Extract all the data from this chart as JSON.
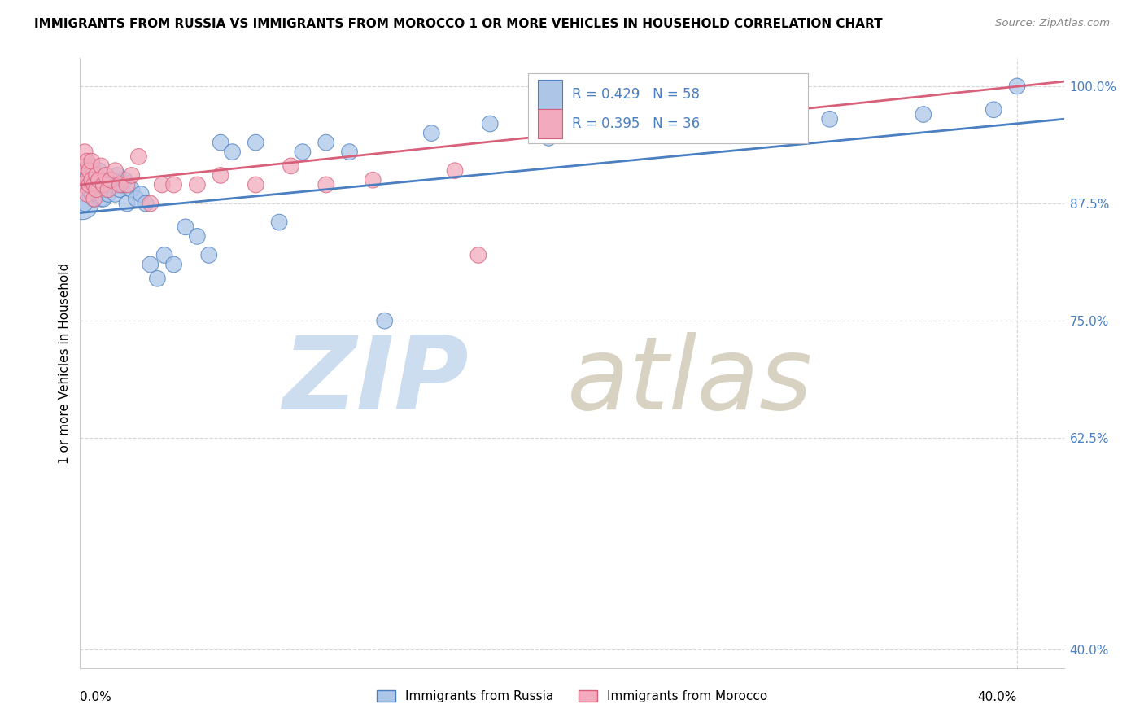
{
  "title": "IMMIGRANTS FROM RUSSIA VS IMMIGRANTS FROM MOROCCO 1 OR MORE VEHICLES IN HOUSEHOLD CORRELATION CHART",
  "source": "Source: ZipAtlas.com",
  "ylabel": "1 or more Vehicles in Household",
  "legend1_label": "Immigrants from Russia",
  "legend2_label": "Immigrants from Morocco",
  "r_russia": 0.429,
  "n_russia": 58,
  "r_morocco": 0.395,
  "n_morocco": 36,
  "color_russia": "#adc6e8",
  "color_morocco": "#f2abbe",
  "line_color_russia": "#4a7fc1",
  "line_color_morocco": "#d9607a",
  "watermark_zip_color": "#c5d8ee",
  "watermark_atlas_color": "#c8bfa8",
  "russia_x": [
    0.001,
    0.002,
    0.003,
    0.003,
    0.004,
    0.004,
    0.005,
    0.005,
    0.005,
    0.006,
    0.006,
    0.006,
    0.007,
    0.007,
    0.008,
    0.008,
    0.009,
    0.009,
    0.01,
    0.01,
    0.011,
    0.012,
    0.013,
    0.014,
    0.015,
    0.016,
    0.017,
    0.018,
    0.019,
    0.02,
    0.022,
    0.024,
    0.026,
    0.028,
    0.03,
    0.033,
    0.036,
    0.04,
    0.045,
    0.05,
    0.055,
    0.06,
    0.065,
    0.075,
    0.085,
    0.095,
    0.105,
    0.115,
    0.13,
    0.15,
    0.175,
    0.2,
    0.24,
    0.28,
    0.32,
    0.36,
    0.39,
    0.4
  ],
  "russia_y": [
    0.875,
    0.875,
    0.91,
    0.895,
    0.9,
    0.89,
    0.915,
    0.9,
    0.885,
    0.88,
    0.895,
    0.91,
    0.9,
    0.885,
    0.895,
    0.91,
    0.88,
    0.9,
    0.895,
    0.88,
    0.89,
    0.885,
    0.895,
    0.9,
    0.885,
    0.905,
    0.89,
    0.895,
    0.9,
    0.875,
    0.89,
    0.88,
    0.885,
    0.875,
    0.81,
    0.795,
    0.82,
    0.81,
    0.85,
    0.84,
    0.82,
    0.94,
    0.93,
    0.94,
    0.855,
    0.93,
    0.94,
    0.93,
    0.75,
    0.95,
    0.96,
    0.945,
    0.955,
    0.96,
    0.965,
    0.97,
    0.975,
    1.0
  ],
  "russia_size": [
    800,
    200,
    200,
    200,
    200,
    200,
    200,
    200,
    200,
    200,
    200,
    200,
    200,
    200,
    200,
    200,
    200,
    200,
    200,
    200,
    200,
    200,
    200,
    200,
    200,
    200,
    200,
    200,
    200,
    200,
    200,
    200,
    200,
    200,
    200,
    200,
    200,
    200,
    200,
    200,
    200,
    200,
    200,
    200,
    200,
    200,
    200,
    200,
    200,
    200,
    200,
    200,
    200,
    200,
    200,
    200,
    200,
    200
  ],
  "morocco_x": [
    0.001,
    0.002,
    0.002,
    0.003,
    0.003,
    0.003,
    0.004,
    0.004,
    0.005,
    0.005,
    0.006,
    0.006,
    0.007,
    0.007,
    0.008,
    0.009,
    0.01,
    0.011,
    0.012,
    0.013,
    0.015,
    0.017,
    0.02,
    0.022,
    0.025,
    0.03,
    0.035,
    0.04,
    0.05,
    0.06,
    0.075,
    0.09,
    0.105,
    0.125,
    0.16,
    0.17
  ],
  "morocco_y": [
    0.895,
    0.915,
    0.93,
    0.9,
    0.92,
    0.885,
    0.91,
    0.895,
    0.9,
    0.92,
    0.895,
    0.88,
    0.905,
    0.89,
    0.9,
    0.915,
    0.895,
    0.905,
    0.89,
    0.9,
    0.91,
    0.895,
    0.895,
    0.905,
    0.925,
    0.875,
    0.895,
    0.895,
    0.895,
    0.905,
    0.895,
    0.915,
    0.895,
    0.9,
    0.91,
    0.82
  ],
  "morocco_size": [
    200,
    200,
    200,
    200,
    200,
    200,
    200,
    200,
    200,
    200,
    200,
    200,
    200,
    200,
    200,
    200,
    200,
    200,
    200,
    200,
    200,
    200,
    200,
    200,
    200,
    200,
    200,
    200,
    200,
    200,
    200,
    200,
    200,
    200,
    200,
    200
  ],
  "xlim": [
    0.0,
    0.42
  ],
  "ylim": [
    0.38,
    1.03
  ],
  "ytick_vals": [
    1.0,
    0.875,
    0.75,
    0.625,
    0.4
  ],
  "ytick_labels": [
    "100.0%",
    "87.5%",
    "75.0%",
    "62.5%",
    "40.0%"
  ],
  "trend_russia_x0": 0.0,
  "trend_russia_x1": 0.42,
  "trend_russia_y0": 0.865,
  "trend_russia_y1": 0.965,
  "trend_morocco_x0": 0.0,
  "trend_morocco_x1": 0.42,
  "trend_morocco_y0": 0.895,
  "trend_morocco_y1": 1.005
}
